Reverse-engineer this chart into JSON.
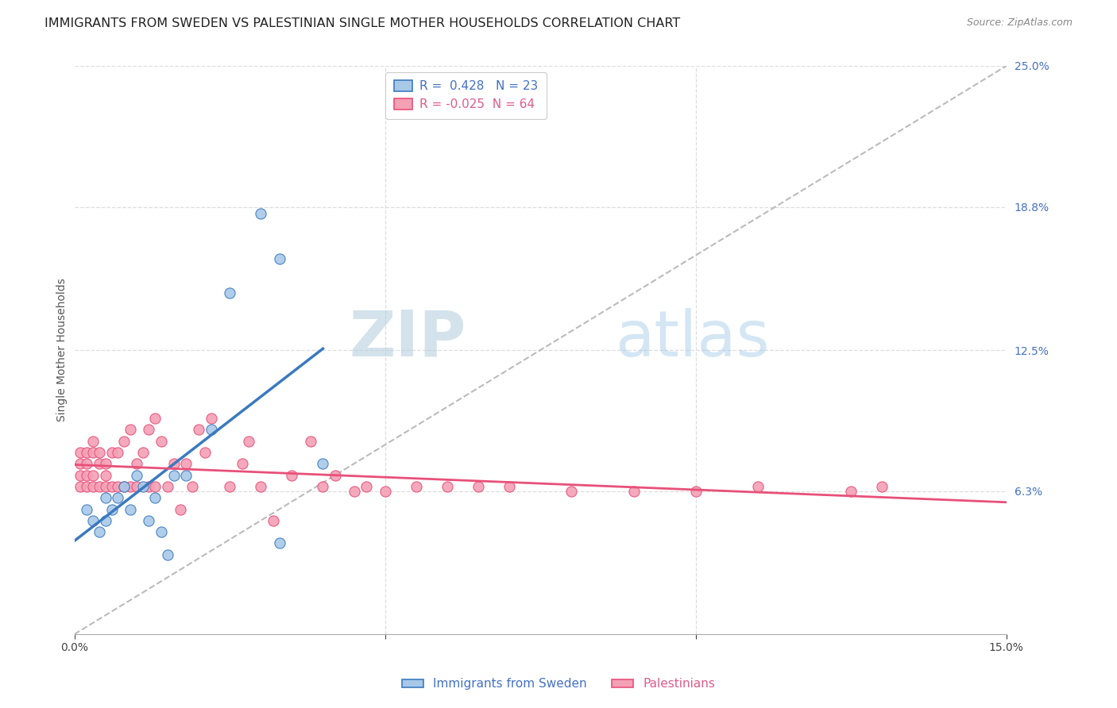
{
  "title": "IMMIGRANTS FROM SWEDEN VS PALESTINIAN SINGLE MOTHER HOUSEHOLDS CORRELATION CHART",
  "source": "Source: ZipAtlas.com",
  "ylabel": "Single Mother Households",
  "legend_label_blue": "Immigrants from Sweden",
  "legend_label_pink": "Palestinians",
  "r_blue": 0.428,
  "n_blue": 23,
  "r_pink": -0.025,
  "n_pink": 64,
  "xlim": [
    0,
    0.15
  ],
  "ylim": [
    0,
    0.25
  ],
  "ytick_labels": [
    "6.3%",
    "12.5%",
    "18.8%",
    "25.0%"
  ],
  "ytick_values": [
    0.063,
    0.125,
    0.188,
    0.25
  ],
  "color_blue": "#a8c8e8",
  "color_pink": "#f4a0b5",
  "color_trendline_blue": "#3a7abf",
  "color_trendline_pink": "#e8507a",
  "color_diag": "#bbbbbb",
  "watermark_zip": "ZIP",
  "watermark_atlas": "atlas",
  "blue_x": [
    0.002,
    0.003,
    0.004,
    0.005,
    0.005,
    0.006,
    0.007,
    0.008,
    0.009,
    0.01,
    0.011,
    0.012,
    0.013,
    0.014,
    0.015,
    0.016,
    0.018,
    0.022,
    0.025,
    0.03,
    0.033,
    0.033,
    0.04
  ],
  "blue_y": [
    0.055,
    0.05,
    0.045,
    0.06,
    0.05,
    0.055,
    0.06,
    0.065,
    0.055,
    0.07,
    0.065,
    0.05,
    0.06,
    0.045,
    0.035,
    0.07,
    0.07,
    0.09,
    0.15,
    0.185,
    0.165,
    0.04,
    0.075
  ],
  "pink_x": [
    0.001,
    0.001,
    0.001,
    0.001,
    0.002,
    0.002,
    0.002,
    0.002,
    0.003,
    0.003,
    0.003,
    0.003,
    0.004,
    0.004,
    0.004,
    0.005,
    0.005,
    0.005,
    0.006,
    0.006,
    0.007,
    0.007,
    0.008,
    0.008,
    0.009,
    0.009,
    0.01,
    0.01,
    0.011,
    0.012,
    0.012,
    0.013,
    0.013,
    0.014,
    0.015,
    0.016,
    0.017,
    0.018,
    0.019,
    0.02,
    0.021,
    0.022,
    0.025,
    0.027,
    0.028,
    0.03,
    0.032,
    0.035,
    0.038,
    0.04,
    0.042,
    0.045,
    0.047,
    0.05,
    0.055,
    0.06,
    0.065,
    0.07,
    0.08,
    0.09,
    0.1,
    0.11,
    0.125,
    0.13
  ],
  "pink_y": [
    0.065,
    0.07,
    0.075,
    0.08,
    0.065,
    0.07,
    0.075,
    0.08,
    0.065,
    0.07,
    0.08,
    0.085,
    0.065,
    0.075,
    0.08,
    0.065,
    0.07,
    0.075,
    0.065,
    0.08,
    0.065,
    0.08,
    0.065,
    0.085,
    0.065,
    0.09,
    0.065,
    0.075,
    0.08,
    0.065,
    0.09,
    0.065,
    0.095,
    0.085,
    0.065,
    0.075,
    0.055,
    0.075,
    0.065,
    0.09,
    0.08,
    0.095,
    0.065,
    0.075,
    0.085,
    0.065,
    0.05,
    0.07,
    0.085,
    0.065,
    0.07,
    0.063,
    0.065,
    0.063,
    0.065,
    0.065,
    0.065,
    0.065,
    0.063,
    0.063,
    0.063,
    0.065,
    0.063,
    0.065
  ],
  "title_fontsize": 11.5,
  "source_fontsize": 9,
  "axis_label_fontsize": 10,
  "tick_fontsize": 10,
  "legend_fontsize": 11,
  "watermark_fontsize": 58
}
